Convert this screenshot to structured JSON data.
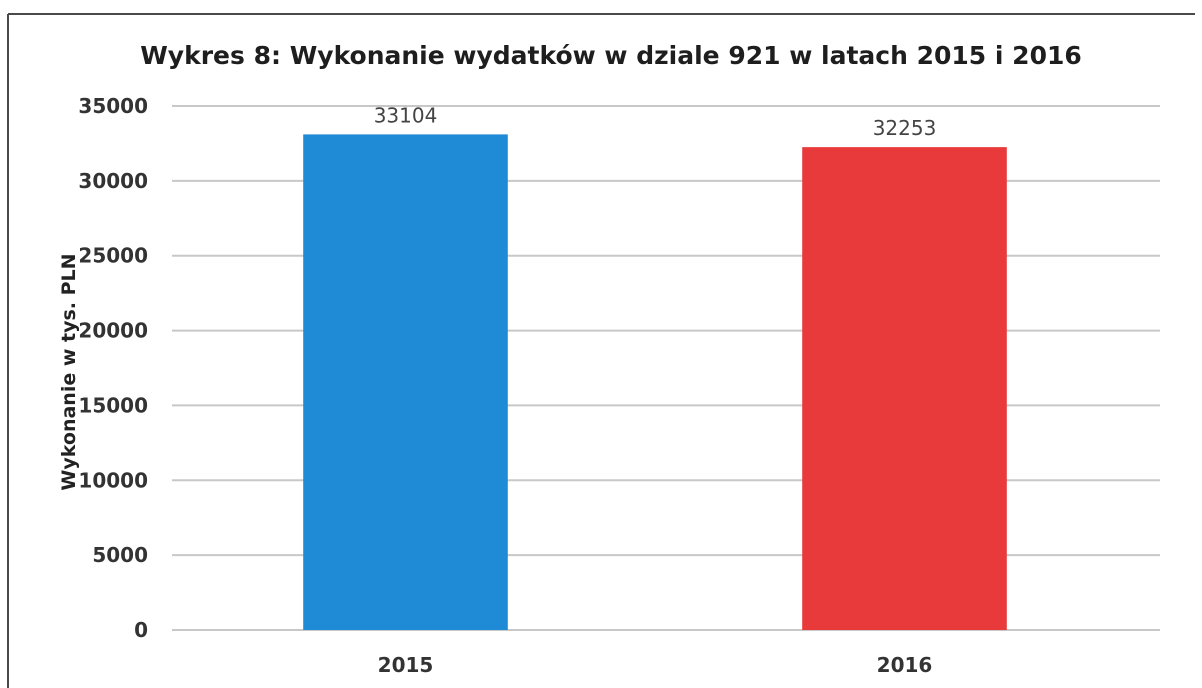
{
  "chart_data": {
    "type": "bar",
    "title": "Wykres 8: Wykonanie wydatków w dziale 921 w latach 2015 i 2016",
    "xlabel": "",
    "ylabel": "Wykonanie w tys. PLN",
    "categories": [
      "2015",
      "2016"
    ],
    "values": [
      33104,
      32253
    ],
    "data_labels": [
      "33104",
      "32253"
    ],
    "colors": [
      "#1f8ad6",
      "#e83a3a"
    ],
    "ylim": [
      0,
      35000
    ],
    "yticks": [
      "0",
      "5000",
      "10000",
      "15000",
      "20000",
      "25000",
      "30000",
      "35000"
    ],
    "grid": true,
    "legend": "none"
  }
}
